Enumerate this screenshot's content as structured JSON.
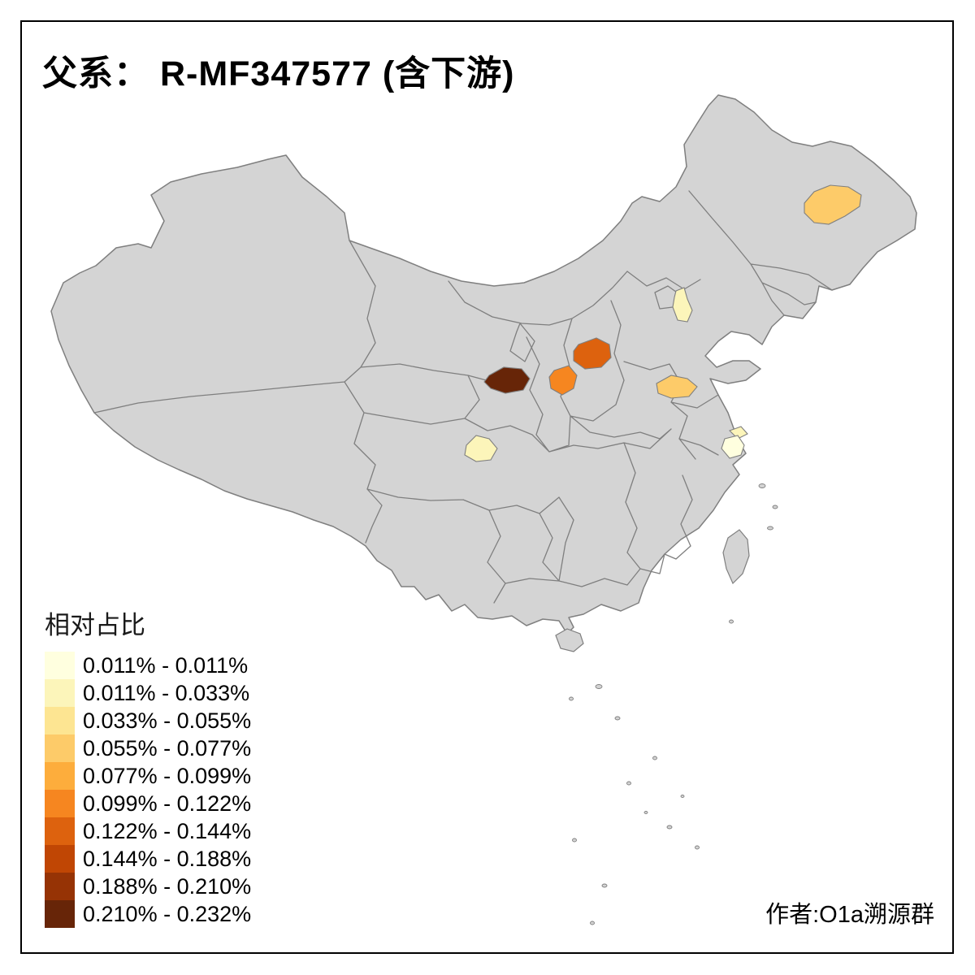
{
  "title": "父系： R-MF347577 (含下游)",
  "credit": "作者:O1a溯源群",
  "legend": {
    "title": "相对占比",
    "items": [
      {
        "range": "0.011% - 0.011%",
        "color": "#FFFFDF"
      },
      {
        "range": "0.011% - 0.033%",
        "color": "#FCF5BA"
      },
      {
        "range": "0.033% - 0.055%",
        "color": "#FDE592"
      },
      {
        "range": "0.055% - 0.077%",
        "color": "#FDCB69"
      },
      {
        "range": "0.077% - 0.099%",
        "color": "#FDAD3C"
      },
      {
        "range": "0.099% - 0.122%",
        "color": "#F68620"
      },
      {
        "range": "0.122% - 0.144%",
        "color": "#DD620E"
      },
      {
        "range": "0.144% - 0.188%",
        "color": "#C04604"
      },
      {
        "range": "0.188% - 0.210%",
        "color": "#963305"
      },
      {
        "range": "0.210% - 0.232%",
        "color": "#672508"
      }
    ]
  },
  "map": {
    "base_fill": "#D4D4D4",
    "border_color": "#7F7F7F",
    "background": "#FFFFFF",
    "regions": [
      {
        "position": "northeast-heilongjiang",
        "range": "0.055% - 0.077%",
        "color": "#FDCB69"
      },
      {
        "position": "tianjin-area",
        "range": "0.011% - 0.033%",
        "color": "#FCF5BA"
      },
      {
        "position": "shanxi-central",
        "range": "0.122% - 0.144%",
        "color": "#DD620E"
      },
      {
        "position": "shanxi-shaanxi-southwest",
        "range": "0.099% - 0.122%",
        "color": "#F68620"
      },
      {
        "position": "gansu-south",
        "range": "0.210% - 0.232%",
        "color": "#672508"
      },
      {
        "position": "jiangsu-northwest",
        "range": "0.055% - 0.077%",
        "color": "#FDCB69"
      },
      {
        "position": "sichuan-chengdu",
        "range": "0.011% - 0.033%",
        "color": "#FCF5BA"
      },
      {
        "position": "jiangsu-south-sliver",
        "range": "0.011% - 0.033%",
        "color": "#FCF5BA"
      },
      {
        "position": "shanghai-suzhou",
        "range": "0.011% - 0.011%",
        "color": "#FFFFDF"
      }
    ]
  }
}
